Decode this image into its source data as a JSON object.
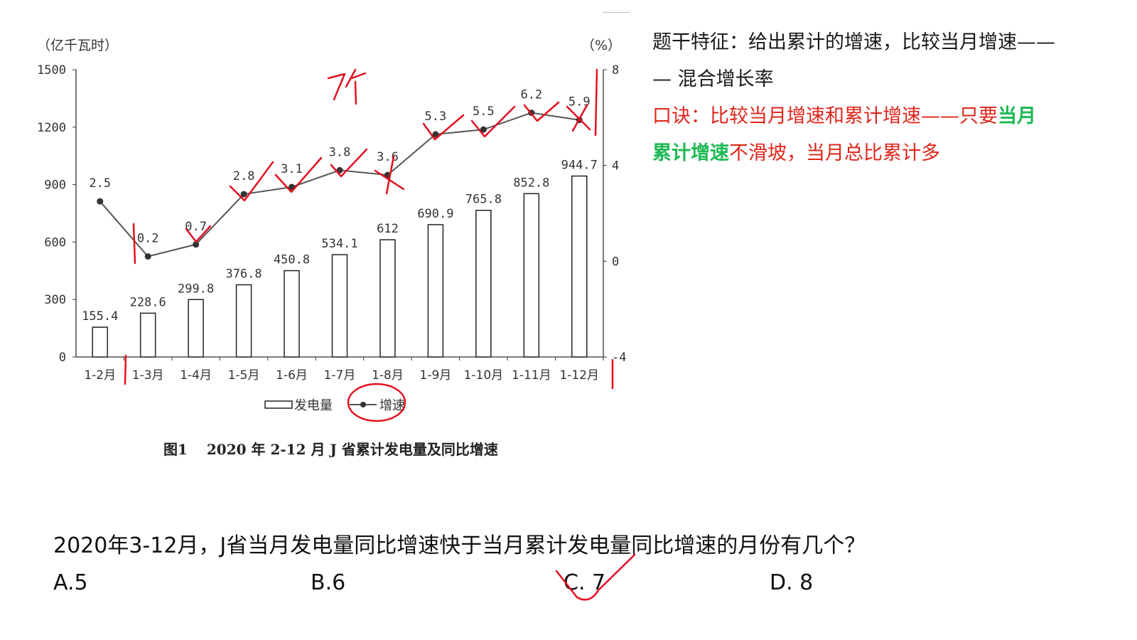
{
  "chart_data": {
    "type": "bar+line",
    "categories": [
      "1-2月",
      "1-3月",
      "1-4月",
      "1-5月",
      "1-6月",
      "1-7月",
      "1-8月",
      "1-9月",
      "1-10月",
      "1-11月",
      "1-12月"
    ],
    "series": [
      {
        "name": "发电量",
        "type": "bar",
        "axis": "left",
        "values": [
          155.4,
          228.6,
          299.8,
          376.8,
          450.8,
          534.1,
          612,
          690.9,
          765.8,
          852.8,
          944.7
        ],
        "labels": [
          "155.4",
          "228.6",
          "299.8",
          "376.8",
          "450.8",
          "534.1",
          "612",
          "690.9",
          "765.8",
          "852.8",
          "944.7"
        ]
      },
      {
        "name": "增速",
        "type": "line",
        "axis": "right",
        "values": [
          2.5,
          0.2,
          0.7,
          2.8,
          3.1,
          3.8,
          3.6,
          5.3,
          5.5,
          6.2,
          5.9
        ],
        "labels": [
          "2.5",
          "0.2",
          "0.7",
          "2.8",
          "3.1",
          "3.8",
          "3.6",
          "5.3",
          "5.5",
          "6.2",
          "5.9"
        ]
      }
    ],
    "y_left_label": "（亿千瓦时）",
    "y_left_ticks": [
      "1500",
      "1200",
      "900",
      "600",
      "300",
      "0"
    ],
    "ylim_left": [
      0,
      1500
    ],
    "y_right_label": "（%）",
    "y_right_ticks": [
      "8",
      "4",
      "0",
      "-4"
    ],
    "ylim_right": [
      -4,
      8
    ],
    "legend": {
      "bar": "发电量",
      "line": "增速",
      "position": "bottom"
    },
    "title": "图1　 2020 年 2-12 月 J 省累计发电量及同比增速",
    "grid": false
  },
  "notes": {
    "line1": "题干特征：给出累计的增速，比较当月增速——",
    "line2": "— 混合增长率",
    "line3_a": "口诀：比较当月增速和累计增速——只要",
    "line3_b": "当月",
    "line4_a": "累计增速",
    "line4_b": "不滑坡，当月总比累计多"
  },
  "question": {
    "text": "2020年3-12月，J省当月发电量同比增速快于当月累计发电量同比增速的月份有几个？",
    "options": [
      "A.5",
      "B.6",
      "C. 7",
      "D. 8"
    ]
  },
  "annotation": {
    "count_text": "7个"
  },
  "colors": {
    "bar_fill": "#ffffff",
    "bar_stroke": "#222222",
    "line": "#555555",
    "marker": "#333333",
    "hand": "#e3101f"
  }
}
